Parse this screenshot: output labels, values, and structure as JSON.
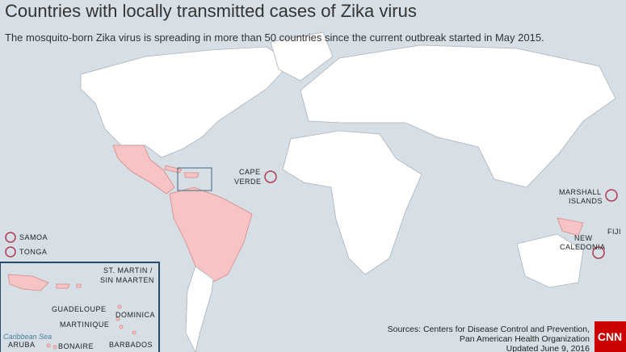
{
  "header": {
    "title": "Countries with locally transmitted cases of Zika virus",
    "subtitle": "The mosquito-born Zika virus is spreading in more than 50 countries since the current outbreak started in May 2015."
  },
  "map_labels": {
    "cape_verde": [
      "CAPE",
      "VERDE"
    ],
    "marshall_islands": [
      "MARSHALL",
      "ISLANDS"
    ],
    "samoa": "SAMOA",
    "tonga": "TONGA",
    "fiji": "FIJI",
    "new_caledonia": [
      "NEW",
      "CALEDONIA"
    ]
  },
  "inset": {
    "st_martin": [
      "ST. MARTIN /",
      "SIN MAARTEN"
    ],
    "guadeloupe": "GUADELOUPE",
    "dominica": "DOMINICA",
    "martinique": "MARTINIQUE",
    "barbados": "BARBADOS",
    "aruba": "ARUBA",
    "bonaire": "BONAIRE",
    "sea": "Caribbean Sea"
  },
  "sources": [
    "Sources: Centers for Disease Control and Prevention,",
    "Pan American Health Organization",
    "Updated June 9, 2016"
  ],
  "logo": "CNN"
}
